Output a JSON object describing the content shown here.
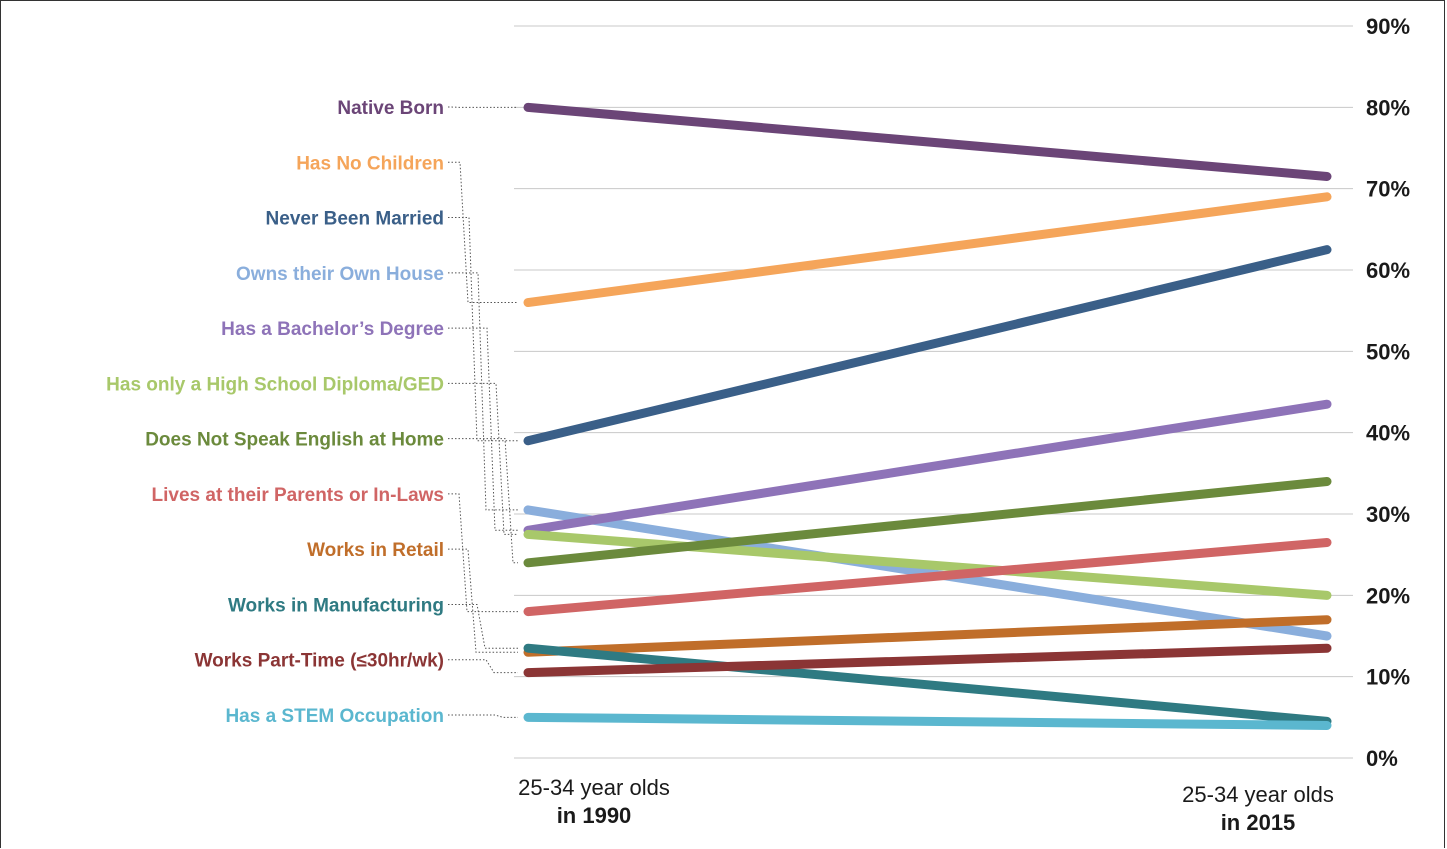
{
  "chart_data": {
    "type": "line",
    "x": [
      "1990",
      "2015"
    ],
    "x_labels": [
      {
        "line1": "25-34 year olds",
        "line2": "in 1990"
      },
      {
        "line1": "25-34 year olds",
        "line2": "in 2015"
      }
    ],
    "y_ticks": [
      "0%",
      "10%",
      "20%",
      "30%",
      "40%",
      "50%",
      "60%",
      "70%",
      "80%",
      "90%"
    ],
    "ylim": [
      0,
      90
    ],
    "grid": true,
    "series": [
      {
        "name": "Native Born",
        "color": "#6b4577",
        "values": [
          80,
          71.5
        ]
      },
      {
        "name": "Has No Children",
        "color": "#f5a55a",
        "values": [
          56,
          69
        ]
      },
      {
        "name": "Never Been Married",
        "color": "#3a5f88",
        "values": [
          39,
          62.5
        ]
      },
      {
        "name": "Owns their Own House",
        "color": "#8aaedc",
        "values": [
          30.5,
          15
        ]
      },
      {
        "name": "Has a Bachelor’s Degree",
        "color": "#8e73b8",
        "values": [
          28,
          43.5
        ]
      },
      {
        "name": "Has only a High School Diploma/GED",
        "color": "#a8c86a",
        "values": [
          27.5,
          20
        ]
      },
      {
        "name": "Does Not Speak English at Home",
        "color": "#6b8a3c",
        "values": [
          24,
          34
        ]
      },
      {
        "name": "Lives at their Parents or In-Laws",
        "color": "#d06565",
        "values": [
          18,
          26.5
        ]
      },
      {
        "name": "Works in Retail",
        "color": "#c06e2a",
        "values": [
          13,
          17
        ]
      },
      {
        "name": "Works in Manufacturing",
        "color": "#2f7a82",
        "values": [
          13.5,
          4.5
        ]
      },
      {
        "name": "Works Part-Time (≤30hr/wk)",
        "color": "#8b3535",
        "values": [
          10.5,
          13.5
        ]
      },
      {
        "name": "Has a STEM Occupation",
        "color": "#5bb7cf",
        "values": [
          5,
          4
        ]
      }
    ]
  }
}
